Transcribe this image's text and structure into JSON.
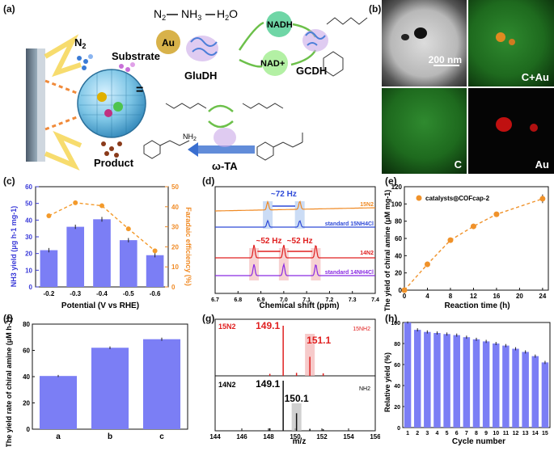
{
  "panels": {
    "a": {
      "label": "(a)",
      "n2": "N",
      "n2_sub": "2",
      "substrate": "Substrate",
      "au": "Au",
      "product": "Product",
      "eq_n2": "N",
      "eq_n2_sub": "2",
      "eq_nh3": "NH",
      "eq_nh3_sub": "3",
      "eq_h2o": "H",
      "eq_h2o_sub": "2",
      "eq_h2o_o": "O",
      "nadh": "NADH",
      "nadplus": "NAD+",
      "gludh": "GluDH",
      "gcdh": "GCDH",
      "omega_ta": "ω-TA",
      "nh2": "NH",
      "nh2_sub": "2"
    },
    "b": {
      "label": "(b)",
      "scale": "200 nm",
      "tile_cau": "C+Au",
      "tile_c": "C",
      "tile_au": "Au"
    },
    "c": {
      "label": "(c)",
      "ylabel_left": "NH3 yield (μg h-1 mg-1)",
      "ylabel_right": "Faradaic efficiency (%)",
      "xlabel": "Potential  (V vs RHE)"
    },
    "d": {
      "label": "(d)",
      "xlabel": "Chemical shift (ppm)",
      "hz72": "~72 Hz",
      "hz52a": "~52 Hz",
      "hz52b": "~52 Hz",
      "trace_15n2": "15N2",
      "trace_std15": "standard 15NH4Cl",
      "trace_14n2": "14N2",
      "trace_std14": "standard 14NH4Cl"
    },
    "e": {
      "label": "(e)",
      "ylabel": "The yield of chiral amine (μM mg-1)",
      "xlabel": "Reaction time (h)",
      "legend": "catalysts◎COFcap-2"
    },
    "f": {
      "label": "(f)",
      "ylabel": "The yield rate of chiral amine (μM h-1)"
    },
    "g": {
      "label": "(g)",
      "xlabel": "m/z",
      "top_label": "15N2",
      "bot_label": "14N2",
      "peak_top_main": "149.1",
      "peak_top_iso": "151.1",
      "peak_bot_main": "149.1",
      "peak_bot_iso": "150.1",
      "nh2_15": "15NH2",
      "nh2_14": "NH2"
    },
    "h": {
      "label": "(h)",
      "ylabel": "Relative yield (%)",
      "xlabel": "Cycle number"
    }
  },
  "colors": {
    "bar": "#7b7ef5",
    "bar_edge": "#4b4fd8",
    "fe_line": "#f39a2b",
    "e_line": "#f0922a",
    "trace_15n2": "#f08a24",
    "trace_std15": "#2e4ad8",
    "trace_14n2": "#e02020",
    "trace_std14": "#8a2be2",
    "ms_top": "#e02020",
    "ms_bot": "#111111"
  },
  "chart_data": [
    {
      "panel": "c",
      "type": "bar",
      "categories": [
        "-0.2",
        "-0.3",
        "-0.4",
        "-0.5",
        "-0.6"
      ],
      "values": [
        22,
        36,
        40.5,
        28,
        19
      ],
      "errors": [
        1.3,
        1.3,
        1.4,
        1.3,
        1.3
      ],
      "ylim": [
        0,
        60
      ],
      "yticks": [
        0,
        10,
        20,
        30,
        40,
        50,
        60
      ],
      "secondary": {
        "type": "line",
        "values": [
          35.5,
          42,
          40.5,
          29,
          18
        ],
        "ylim": [
          0,
          50
        ],
        "yticks": [
          0,
          10,
          20,
          30,
          40,
          50
        ]
      }
    },
    {
      "panel": "d",
      "type": "line",
      "xlim": [
        7.4,
        6.7
      ],
      "xticks": [
        6.7,
        6.8,
        6.9,
        7.0,
        7.1,
        7.2,
        7.3,
        7.4
      ],
      "series": [
        {
          "name": "15N2",
          "peaks": [
            6.93,
            7.07
          ]
        },
        {
          "name": "standard 15NH4Cl",
          "peaks": [
            6.93,
            7.07
          ]
        },
        {
          "name": "14N2",
          "peaks": [
            6.87,
            7.0,
            7.14
          ]
        },
        {
          "name": "standard 14NH4Cl",
          "peaks": [
            6.87,
            7.0,
            7.14
          ]
        }
      ]
    },
    {
      "panel": "e",
      "type": "line",
      "x": [
        0,
        4,
        8,
        12,
        16,
        24
      ],
      "values": [
        0,
        30,
        58,
        74,
        88,
        106
      ],
      "errors": [
        1,
        3,
        2,
        3,
        3,
        5
      ],
      "xlim": [
        0,
        25
      ],
      "xticks": [
        0,
        4,
        8,
        12,
        16,
        20,
        24
      ],
      "ylim": [
        0,
        120
      ],
      "yticks": [
        0,
        20,
        40,
        60,
        80,
        100,
        120
      ]
    },
    {
      "panel": "f",
      "type": "bar",
      "categories": [
        "a",
        "b",
        "c"
      ],
      "values": [
        40.5,
        62,
        68.5
      ],
      "errors": [
        0.8,
        1.0,
        1.2
      ],
      "ylim": [
        0,
        80
      ],
      "yticks": [
        0,
        20,
        40,
        60,
        80
      ]
    },
    {
      "panel": "g",
      "type": "bar",
      "xlim": [
        144,
        156
      ],
      "xticks": [
        144,
        146,
        148,
        150,
        152,
        154,
        156
      ],
      "series": [
        {
          "name": "15N2",
          "peaks": [
            [
              149.1,
              1.0
            ],
            [
              151.1,
              0.38
            ],
            [
              150.1,
              0.06
            ],
            [
              148.1,
              0.04
            ],
            [
              152.1,
              0.05
            ]
          ]
        },
        {
          "name": "14N2",
          "peaks": [
            [
              149.1,
              1.0
            ],
            [
              150.1,
              0.35
            ],
            [
              148.1,
              0.05
            ],
            [
              151.1,
              0.04
            ],
            [
              152.1,
              0.03
            ]
          ]
        }
      ]
    },
    {
      "panel": "h",
      "type": "bar",
      "categories": [
        "1",
        "2",
        "3",
        "4",
        "5",
        "6",
        "7",
        "8",
        "9",
        "10",
        "11",
        "12",
        "13",
        "14",
        "15"
      ],
      "values": [
        100,
        93,
        91,
        90,
        89,
        88,
        86,
        84,
        82,
        80,
        78,
        75,
        72,
        68,
        62
      ],
      "errors": [
        1,
        1.5,
        1.5,
        1.5,
        1.5,
        1.5,
        1.5,
        1.5,
        1.5,
        1.5,
        1.5,
        1.5,
        1.5,
        1.5,
        1.5
      ],
      "ylim": [
        0,
        100
      ],
      "yticks": [
        0,
        20,
        40,
        60,
        80,
        100
      ]
    }
  ]
}
